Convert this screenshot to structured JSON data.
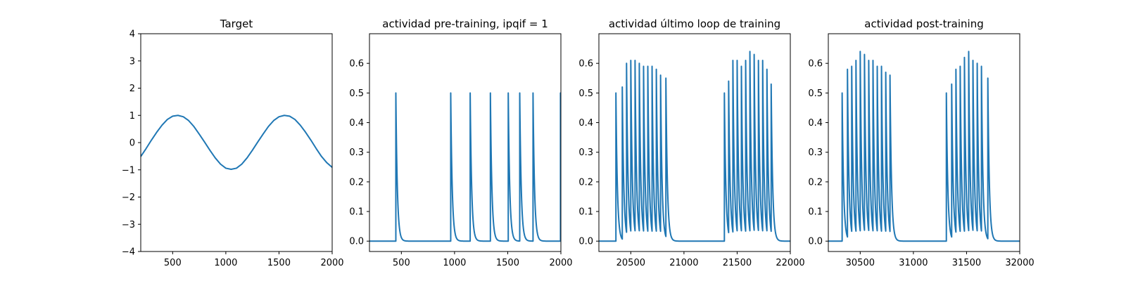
{
  "colors": {
    "series": "#1f77b4",
    "axes": "#000000",
    "background": "#ffffff"
  },
  "chart_data": [
    {
      "type": "line",
      "title": "Target",
      "xlabel": "",
      "ylabel": "",
      "xlim": [
        200,
        2000
      ],
      "ylim": [
        -4,
        4
      ],
      "xticks": [
        500,
        1000,
        1500,
        2000
      ],
      "yticks": [
        -4,
        -3,
        -2,
        -1,
        0,
        1,
        2,
        3,
        4
      ],
      "grid": false,
      "series": [
        {
          "x": [
            200,
            250,
            300,
            350,
            400,
            450,
            500,
            550,
            600,
            650,
            700,
            750,
            800,
            850,
            900,
            950,
            1000,
            1050,
            1100,
            1150,
            1200,
            1250,
            1300,
            1350,
            1400,
            1450,
            1500,
            1550,
            1600,
            1650,
            1700,
            1750,
            1800,
            1850,
            1900,
            1950,
            2000
          ],
          "y": [
            -0.51,
            -0.22,
            0.09,
            0.38,
            0.64,
            0.85,
            0.97,
            1.0,
            0.95,
            0.81,
            0.59,
            0.31,
            0.02,
            -0.28,
            -0.56,
            -0.79,
            -0.94,
            -0.98,
            -0.94,
            -0.79,
            -0.56,
            -0.28,
            0.02,
            0.31,
            0.59,
            0.81,
            0.95,
            1.0,
            0.97,
            0.85,
            0.64,
            0.38,
            0.09,
            -0.22,
            -0.51,
            -0.74,
            -0.91
          ]
        }
      ]
    },
    {
      "type": "line",
      "title": "actividad pre-training, ipqif = 1",
      "xlabel": "",
      "ylabel": "",
      "xlim": [
        200,
        2000
      ],
      "ylim": [
        -0.035,
        0.7
      ],
      "xticks": [
        500,
        1000,
        1500,
        2000
      ],
      "yticks": [
        0.0,
        0.1,
        0.2,
        0.3,
        0.4,
        0.5,
        0.6
      ],
      "grid": false,
      "baseline": 0.0,
      "decay_tau": 14,
      "spikes": [
        {
          "t": 448,
          "peak": 0.5
        },
        {
          "t": 964,
          "peak": 0.5
        },
        {
          "t": 1147,
          "peak": 0.5
        },
        {
          "t": 1337,
          "peak": 0.5
        },
        {
          "t": 1505,
          "peak": 0.5
        },
        {
          "t": 1613,
          "peak": 0.5
        },
        {
          "t": 1738,
          "peak": 0.5
        },
        {
          "t": 1996,
          "peak": 0.5
        }
      ]
    },
    {
      "type": "line",
      "title": "actividad último loop de training",
      "xlabel": "",
      "ylabel": "",
      "xlim": [
        20200,
        22000
      ],
      "ylim": [
        -0.035,
        0.7
      ],
      "xticks": [
        20500,
        21000,
        21500,
        22000
      ],
      "yticks": [
        0.0,
        0.1,
        0.2,
        0.3,
        0.4,
        0.5,
        0.6
      ],
      "grid": false,
      "baseline": 0.0,
      "decay_tau": 14,
      "spikes": [
        {
          "t": 20360,
          "peak": 0.5
        },
        {
          "t": 20420,
          "peak": 0.52
        },
        {
          "t": 20460,
          "peak": 0.6
        },
        {
          "t": 20500,
          "peak": 0.61
        },
        {
          "t": 20540,
          "peak": 0.61
        },
        {
          "t": 20580,
          "peak": 0.6
        },
        {
          "t": 20620,
          "peak": 0.59
        },
        {
          "t": 20660,
          "peak": 0.59
        },
        {
          "t": 20700,
          "peak": 0.59
        },
        {
          "t": 20740,
          "peak": 0.58
        },
        {
          "t": 20780,
          "peak": 0.56
        },
        {
          "t": 20830,
          "peak": 0.55
        },
        {
          "t": 21380,
          "peak": 0.5
        },
        {
          "t": 21420,
          "peak": 0.54
        },
        {
          "t": 21460,
          "peak": 0.61
        },
        {
          "t": 21500,
          "peak": 0.61
        },
        {
          "t": 21540,
          "peak": 0.59
        },
        {
          "t": 21580,
          "peak": 0.61
        },
        {
          "t": 21620,
          "peak": 0.64
        },
        {
          "t": 21660,
          "peak": 0.63
        },
        {
          "t": 21700,
          "peak": 0.61
        },
        {
          "t": 21740,
          "peak": 0.61
        },
        {
          "t": 21780,
          "peak": 0.58
        },
        {
          "t": 21820,
          "peak": 0.53
        }
      ]
    },
    {
      "type": "line",
      "title": "actividad post-training",
      "xlabel": "",
      "ylabel": "",
      "xlim": [
        30200,
        32000
      ],
      "ylim": [
        -0.035,
        0.7
      ],
      "xticks": [
        30500,
        31000,
        31500,
        32000
      ],
      "yticks": [
        0.0,
        0.1,
        0.2,
        0.3,
        0.4,
        0.5,
        0.6
      ],
      "grid": false,
      "baseline": 0.0,
      "decay_tau": 14,
      "spikes": [
        {
          "t": 30330,
          "peak": 0.5
        },
        {
          "t": 30380,
          "peak": 0.58
        },
        {
          "t": 30420,
          "peak": 0.59
        },
        {
          "t": 30460,
          "peak": 0.61
        },
        {
          "t": 30500,
          "peak": 0.64
        },
        {
          "t": 30540,
          "peak": 0.63
        },
        {
          "t": 30580,
          "peak": 0.61
        },
        {
          "t": 30620,
          "peak": 0.61
        },
        {
          "t": 30660,
          "peak": 0.59
        },
        {
          "t": 30700,
          "peak": 0.59
        },
        {
          "t": 30740,
          "peak": 0.57
        },
        {
          "t": 30780,
          "peak": 0.56
        },
        {
          "t": 31310,
          "peak": 0.5
        },
        {
          "t": 31360,
          "peak": 0.53
        },
        {
          "t": 31400,
          "peak": 0.58
        },
        {
          "t": 31440,
          "peak": 0.59
        },
        {
          "t": 31480,
          "peak": 0.62
        },
        {
          "t": 31520,
          "peak": 0.64
        },
        {
          "t": 31560,
          "peak": 0.61
        },
        {
          "t": 31600,
          "peak": 0.6
        },
        {
          "t": 31640,
          "peak": 0.59
        },
        {
          "t": 31700,
          "peak": 0.55
        }
      ]
    }
  ]
}
